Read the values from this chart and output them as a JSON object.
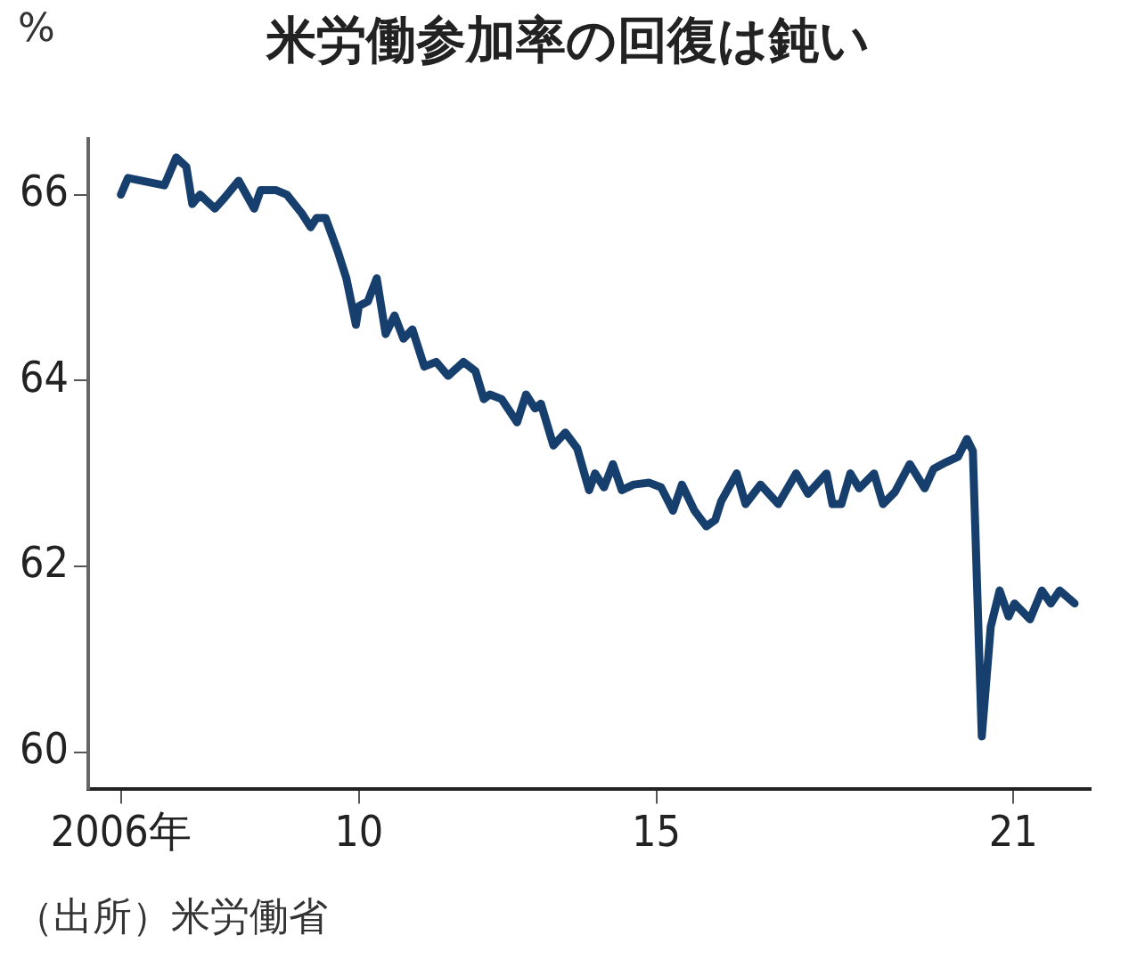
{
  "chart_data": {
    "type": "line",
    "title": "米労働参加率の回復は鈍い",
    "ylabel": "%",
    "annotations": [
      "（出所）米労働省"
    ],
    "xlim": [
      2005.45,
      2022.3
    ],
    "xticks": [
      {
        "value": 2006,
        "label": "2006年"
      },
      {
        "value": 2010,
        "label": "10"
      },
      {
        "value": 2015,
        "label": "15"
      },
      {
        "value": 2021,
        "label": "21"
      }
    ],
    "ylim": [
      59.6,
      66.6
    ],
    "yticks": [
      60,
      62,
      64,
      66
    ],
    "grid": false,
    "legend": false,
    "marker": "none",
    "line_style": "solid",
    "series": [
      {
        "color": "#173f6e",
        "x": [
          2006.0,
          2006.12,
          2006.73,
          2006.93,
          2007.1,
          2007.2,
          2007.33,
          2007.58,
          2007.72,
          2007.98,
          2008.24,
          2008.35,
          2008.6,
          2008.79,
          2009.04,
          2009.19,
          2009.29,
          2009.44,
          2009.64,
          2009.79,
          2009.95,
          2010.0,
          2010.15,
          2010.3,
          2010.45,
          2010.6,
          2010.75,
          2010.9,
          2011.1,
          2011.3,
          2011.5,
          2011.76,
          2011.96,
          2012.1,
          2012.2,
          2012.4,
          2012.66,
          2012.81,
          2012.96,
          2013.06,
          2013.27,
          2013.47,
          2013.67,
          2013.87,
          2013.97,
          2014.12,
          2014.27,
          2014.42,
          2014.62,
          2014.88,
          2015.08,
          2015.28,
          2015.43,
          2015.64,
          2015.84,
          2015.99,
          2016.09,
          2016.35,
          2016.5,
          2016.75,
          2017.05,
          2017.35,
          2017.55,
          2017.86,
          2017.96,
          2018.11,
          2018.26,
          2018.41,
          2018.66,
          2018.81,
          2019.01,
          2019.26,
          2019.51,
          2019.66,
          2019.87,
          2020.07,
          2020.22,
          2020.32,
          2020.47,
          2020.62,
          2020.77,
          2020.92,
          2021.02,
          2021.28,
          2021.48,
          2021.63,
          2021.78,
          2022.03
        ],
        "values": [
          66.0,
          66.18,
          66.1,
          66.4,
          66.3,
          65.9,
          66.0,
          65.85,
          65.95,
          66.15,
          65.85,
          66.05,
          66.05,
          66.0,
          65.8,
          65.65,
          65.75,
          65.75,
          65.4,
          65.1,
          64.6,
          64.8,
          64.85,
          65.1,
          64.5,
          64.7,
          64.45,
          64.55,
          64.15,
          64.2,
          64.05,
          64.2,
          64.1,
          63.8,
          63.85,
          63.8,
          63.55,
          63.85,
          63.7,
          63.75,
          63.3,
          63.44,
          63.27,
          62.82,
          63.0,
          62.85,
          63.1,
          62.82,
          62.88,
          62.9,
          62.85,
          62.6,
          62.88,
          62.6,
          62.43,
          62.5,
          62.7,
          63.0,
          62.67,
          62.88,
          62.67,
          63.0,
          62.78,
          63.0,
          62.67,
          62.67,
          63.0,
          62.84,
          63.0,
          62.67,
          62.8,
          63.1,
          62.84,
          63.05,
          63.12,
          63.18,
          63.37,
          63.24,
          60.17,
          61.35,
          61.74,
          61.46,
          61.6,
          61.43,
          61.74,
          61.6,
          61.74,
          61.6
        ]
      }
    ]
  }
}
